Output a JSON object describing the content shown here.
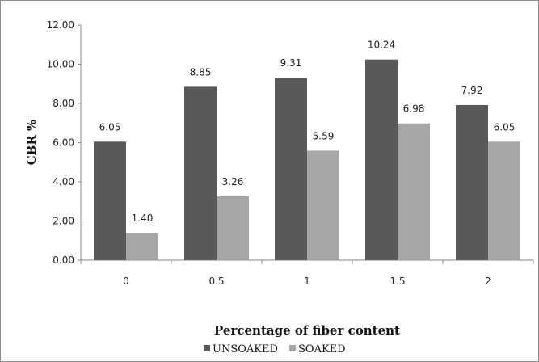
{
  "chart_data": {
    "type": "bar",
    "categories": [
      "0",
      "0.5",
      "1",
      "1.5",
      "2"
    ],
    "series": [
      {
        "name": "UNSOAKED",
        "values": [
          6.05,
          8.85,
          9.31,
          10.24,
          7.92
        ],
        "color": "#595959"
      },
      {
        "name": "SOAKED",
        "values": [
          1.4,
          3.26,
          5.59,
          6.98,
          6.05
        ],
        "color": "#a6a6a6"
      }
    ],
    "value_labels": {
      "UNSOAKED": [
        "6.05",
        "8.85",
        "9.31",
        "10.24",
        "7.92"
      ],
      "SOAKED": [
        "1.40",
        "3.26",
        "5.59",
        "6.98",
        "6.05"
      ]
    },
    "y_ticks": [
      "0.00",
      "2.00",
      "4.00",
      "6.00",
      "8.00",
      "10.00",
      "12.00"
    ],
    "ylim": [
      0,
      12
    ],
    "xlabel": "Percentage of fiber content",
    "ylabel": "CBR %",
    "grid": false,
    "legend_position": "bottom"
  }
}
